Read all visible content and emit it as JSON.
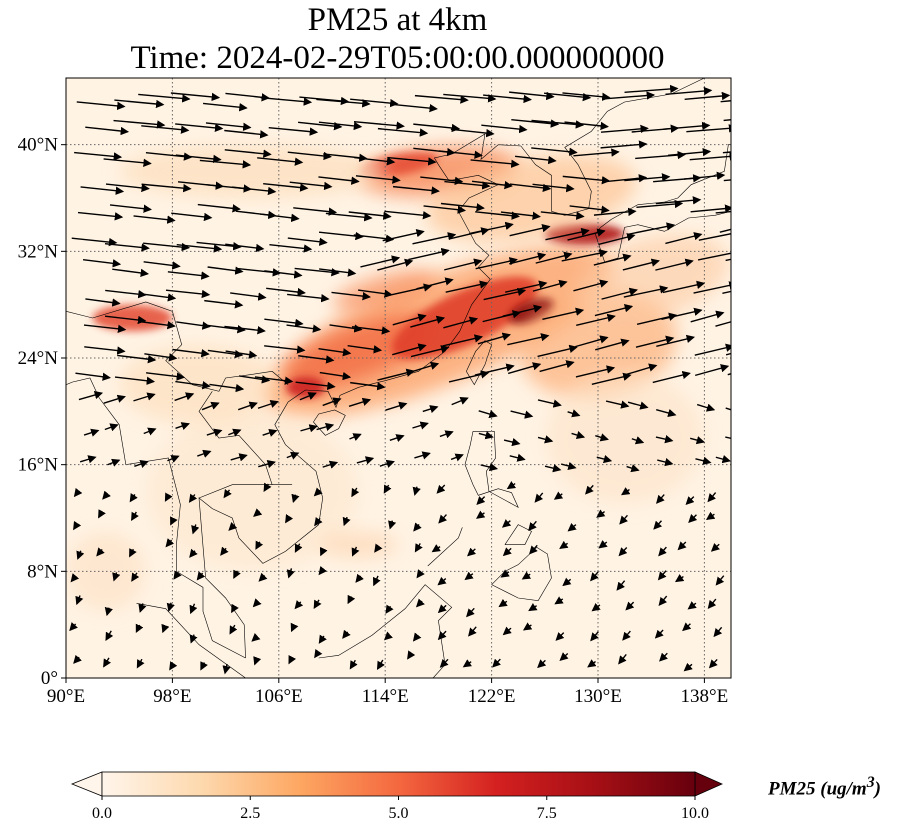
{
  "title": "PM25 at 4km",
  "subtitle": "Time: 2024-02-29T05:00:00.000000000",
  "map": {
    "lon_range": [
      90,
      140
    ],
    "lat_range": [
      0,
      45
    ],
    "lon_ticks": [
      {
        "v": 90,
        "label": "90°E"
      },
      {
        "v": 98,
        "label": "98°E"
      },
      {
        "v": 106,
        "label": "106°E"
      },
      {
        "v": 114,
        "label": "114°E"
      },
      {
        "v": 122,
        "label": "122°E"
      },
      {
        "v": 130,
        "label": "130°E"
      },
      {
        "v": 138,
        "label": "138°E"
      }
    ],
    "lat_ticks": [
      {
        "v": 0,
        "label": "0°"
      },
      {
        "v": 8,
        "label": "8°N"
      },
      {
        "v": 16,
        "label": "16°N"
      },
      {
        "v": 24,
        "label": "24°N"
      },
      {
        "v": 32,
        "label": "32°N"
      },
      {
        "v": 40,
        "label": "40°N"
      }
    ]
  },
  "colorbar": {
    "label": "PM25 (ug/m³)",
    "label_base": "PM25 (ug/m",
    "label_sup": "3",
    "label_end": ")",
    "range": [
      0,
      10
    ],
    "ticks": [
      {
        "v": 0,
        "label": "0.0"
      },
      {
        "v": 2.5,
        "label": "2.5"
      },
      {
        "v": 5,
        "label": "5.0"
      },
      {
        "v": 7.5,
        "label": "7.5"
      },
      {
        "v": 10,
        "label": "10.0"
      }
    ],
    "colors": [
      "#fff5eb",
      "#fdd9ae",
      "#fda762",
      "#f4683f",
      "#d42020",
      "#a50f15",
      "#67000d"
    ]
  }
}
